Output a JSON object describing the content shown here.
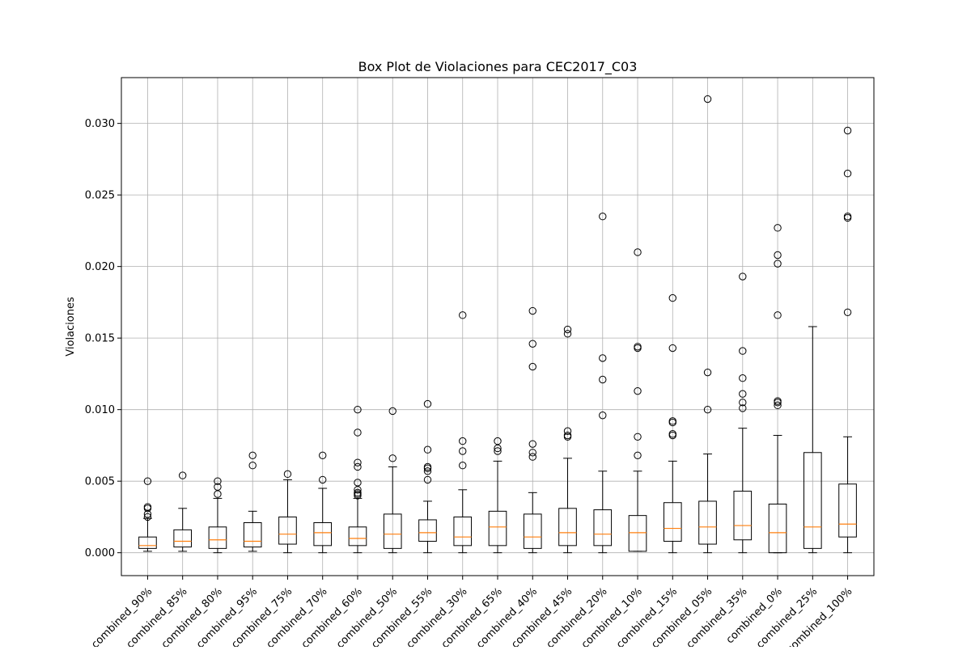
{
  "chart_data": {
    "type": "box",
    "title": "Box Plot de Violaciones para CEC2017_C03",
    "xlabel": "",
    "ylabel": "Violaciones",
    "ylim": [
      -0.0016,
      0.0332
    ],
    "yticks": [
      0.0,
      0.005,
      0.01,
      0.015,
      0.02,
      0.025,
      0.03
    ],
    "ytick_labels": [
      "0.000",
      "0.005",
      "0.010",
      "0.015",
      "0.020",
      "0.025",
      "0.030"
    ],
    "grid": true,
    "median_color": "#ff7f0e",
    "categories": [
      "combined_90%",
      "combined_85%",
      "combined_80%",
      "combined_95%",
      "combined_75%",
      "combined_70%",
      "combined_60%",
      "combined_50%",
      "combined_55%",
      "combined_30%",
      "combined_65%",
      "combined_40%",
      "combined_45%",
      "combined_20%",
      "combined_10%",
      "combined_15%",
      "combined_05%",
      "combined_35%",
      "combined_0%",
      "combined_25%",
      "combined_100%"
    ],
    "boxes": [
      {
        "whislo": 0.0001,
        "q1": 0.0003,
        "med": 0.0005,
        "q3": 0.0011,
        "whishi": 0.0024,
        "fliers": [
          0.005,
          0.0032,
          0.0031,
          0.0027,
          0.0025
        ]
      },
      {
        "whislo": 0.0001,
        "q1": 0.0004,
        "med": 0.0008,
        "q3": 0.0016,
        "whishi": 0.0031,
        "fliers": [
          0.0054
        ]
      },
      {
        "whislo": 0.0,
        "q1": 0.0003,
        "med": 0.0009,
        "q3": 0.0018,
        "whishi": 0.0038,
        "fliers": [
          0.005,
          0.0046,
          0.0041
        ]
      },
      {
        "whislo": 0.0001,
        "q1": 0.0004,
        "med": 0.0008,
        "q3": 0.0021,
        "whishi": 0.0029,
        "fliers": [
          0.0068,
          0.0061
        ]
      },
      {
        "whislo": 0.0,
        "q1": 0.0006,
        "med": 0.0013,
        "q3": 0.0025,
        "whishi": 0.0051,
        "fliers": [
          0.0055
        ]
      },
      {
        "whislo": 0.0,
        "q1": 0.0005,
        "med": 0.0014,
        "q3": 0.0021,
        "whishi": 0.0045,
        "fliers": [
          0.0068,
          0.0051
        ]
      },
      {
        "whislo": 0.0,
        "q1": 0.0005,
        "med": 0.001,
        "q3": 0.0018,
        "whishi": 0.0038,
        "fliers": [
          0.01,
          0.0084,
          0.0063,
          0.006,
          0.0049,
          0.0044,
          0.0042,
          0.0041,
          0.004
        ]
      },
      {
        "whislo": 0.0,
        "q1": 0.0003,
        "med": 0.0013,
        "q3": 0.0027,
        "whishi": 0.006,
        "fliers": [
          0.0099,
          0.0066
        ]
      },
      {
        "whislo": 0.0,
        "q1": 0.0008,
        "med": 0.0014,
        "q3": 0.0023,
        "whishi": 0.0036,
        "fliers": [
          0.0104,
          0.0072,
          0.006,
          0.0059,
          0.0057,
          0.0051
        ]
      },
      {
        "whislo": 0.0,
        "q1": 0.0005,
        "med": 0.0011,
        "q3": 0.0025,
        "whishi": 0.0044,
        "fliers": [
          0.0166,
          0.0078,
          0.0071,
          0.0061
        ]
      },
      {
        "whislo": 0.0,
        "q1": 0.0005,
        "med": 0.0018,
        "q3": 0.0029,
        "whishi": 0.0064,
        "fliers": [
          0.0078,
          0.0073,
          0.0071
        ]
      },
      {
        "whislo": 0.0,
        "q1": 0.0003,
        "med": 0.0011,
        "q3": 0.0027,
        "whishi": 0.0042,
        "fliers": [
          0.0169,
          0.0146,
          0.013,
          0.0076,
          0.007,
          0.0067
        ]
      },
      {
        "whislo": 0.0,
        "q1": 0.0005,
        "med": 0.0014,
        "q3": 0.0031,
        "whishi": 0.0066,
        "fliers": [
          0.0156,
          0.0153,
          0.0085,
          0.0082,
          0.0081
        ]
      },
      {
        "whislo": 0.0,
        "q1": 0.0005,
        "med": 0.0013,
        "q3": 0.003,
        "whishi": 0.0057,
        "fliers": [
          0.0235,
          0.0136,
          0.0121,
          0.0096
        ]
      },
      {
        "whislo": 0.0001,
        "q1": 0.0001,
        "med": 0.0014,
        "q3": 0.0026,
        "whishi": 0.0057,
        "fliers": [
          0.021,
          0.0144,
          0.0143,
          0.0113,
          0.0081,
          0.0068
        ]
      },
      {
        "whislo": 0.0,
        "q1": 0.0008,
        "med": 0.0017,
        "q3": 0.0035,
        "whishi": 0.0064,
        "fliers": [
          0.0178,
          0.0143,
          0.0092,
          0.0091,
          0.0083,
          0.0082
        ]
      },
      {
        "whislo": 0.0,
        "q1": 0.0006,
        "med": 0.0018,
        "q3": 0.0036,
        "whishi": 0.0069,
        "fliers": [
          0.0317,
          0.0126,
          0.01
        ]
      },
      {
        "whislo": 0.0,
        "q1": 0.0009,
        "med": 0.0019,
        "q3": 0.0043,
        "whishi": 0.0087,
        "fliers": [
          0.0193,
          0.0141,
          0.0122,
          0.0111,
          0.0105,
          0.0101
        ]
      },
      {
        "whislo": 0.0,
        "q1": 0.0,
        "med": 0.0014,
        "q3": 0.0034,
        "whishi": 0.0082,
        "fliers": [
          0.0227,
          0.0208,
          0.0202,
          0.0166,
          0.0106,
          0.0105,
          0.0103
        ]
      },
      {
        "whislo": 0.0,
        "q1": 0.0003,
        "med": 0.0018,
        "q3": 0.007,
        "whishi": 0.0158,
        "fliers": []
      },
      {
        "whislo": 0.0,
        "q1": 0.0011,
        "med": 0.002,
        "q3": 0.0048,
        "whishi": 0.0081,
        "fliers": [
          0.0295,
          0.0265,
          0.0235,
          0.0234,
          0.0168
        ]
      }
    ]
  }
}
